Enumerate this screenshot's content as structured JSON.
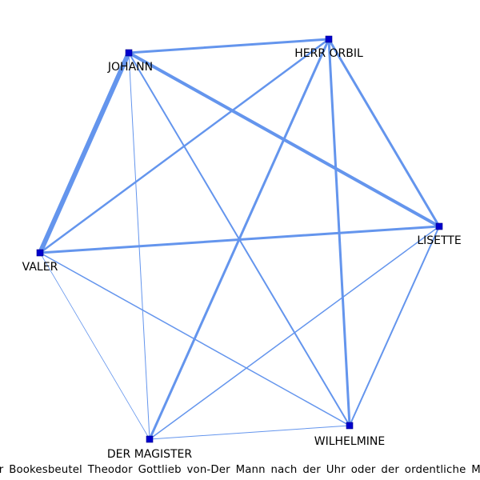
{
  "graph": {
    "nodes": [
      {
        "id": "johann",
        "label": "JOHANN"
      },
      {
        "id": "herr-orbil",
        "label": "HERR ORBIL"
      },
      {
        "id": "lisette",
        "label": "LISETTE"
      },
      {
        "id": "valer",
        "label": "VALER"
      },
      {
        "id": "der-magister",
        "label": "DER MAGISTER"
      },
      {
        "id": "wilhelmine",
        "label": "WILHELMINE"
      }
    ],
    "edges": [
      {
        "source": "johann",
        "target": "valer",
        "weight": 6
      },
      {
        "source": "johann",
        "target": "herr-orbil",
        "weight": 3
      },
      {
        "source": "johann",
        "target": "lisette",
        "weight": 4
      },
      {
        "source": "johann",
        "target": "wilhelmine",
        "weight": 2
      },
      {
        "source": "johann",
        "target": "der-magister",
        "weight": 1
      },
      {
        "source": "herr-orbil",
        "target": "lisette",
        "weight": 3
      },
      {
        "source": "herr-orbil",
        "target": "valer",
        "weight": 2.5
      },
      {
        "source": "herr-orbil",
        "target": "der-magister",
        "weight": 3
      },
      {
        "source": "herr-orbil",
        "target": "wilhelmine",
        "weight": 3
      },
      {
        "source": "lisette",
        "target": "valer",
        "weight": 3
      },
      {
        "source": "lisette",
        "target": "wilhelmine",
        "weight": 2
      },
      {
        "source": "lisette",
        "target": "der-magister",
        "weight": 1.5
      },
      {
        "source": "valer",
        "target": "wilhelmine",
        "weight": 1.5
      },
      {
        "source": "valer",
        "target": "der-magister",
        "weight": 0.8
      },
      {
        "source": "der-magister",
        "target": "wilhelmine",
        "weight": 1
      }
    ],
    "colors": {
      "edge": "#6495ED",
      "node": "#0000CD"
    }
  },
  "caption": "Der Bookesbeutel Theodor Gottlieb von-Der Mann nach der Uhr oder der ordentliche Mann"
}
